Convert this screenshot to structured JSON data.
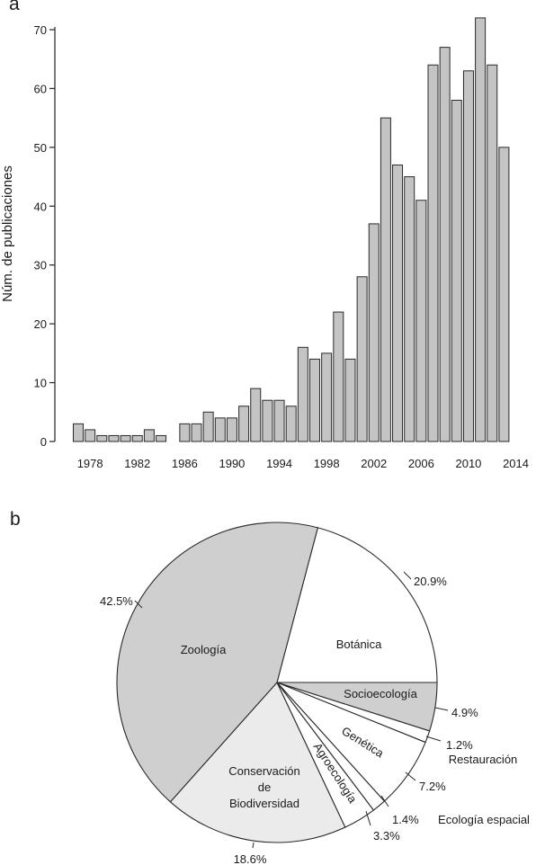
{
  "panels": {
    "a": "a",
    "b": "b"
  },
  "chart_data": [
    {
      "type": "bar",
      "ylabel": "Núm. de publicaciones",
      "xlabel": "",
      "ylim": [
        0,
        70
      ],
      "yticks": [
        0,
        10,
        20,
        30,
        40,
        50,
        60,
        70
      ],
      "xticks": [
        "1978",
        "1982",
        "1986",
        "1990",
        "1994",
        "1998",
        "2002",
        "2006",
        "2010",
        "2014"
      ],
      "categories": [
        1977,
        1978,
        1979,
        1980,
        1981,
        1982,
        1983,
        1984,
        1985,
        1986,
        1987,
        1988,
        1989,
        1990,
        1991,
        1992,
        1993,
        1994,
        1995,
        1996,
        1997,
        1998,
        1999,
        2000,
        2001,
        2002,
        2003,
        2004,
        2005,
        2006,
        2007,
        2008,
        2009,
        2010,
        2011,
        2012,
        2013,
        2014
      ],
      "values": [
        3,
        2,
        1,
        1,
        1,
        1,
        2,
        1,
        0,
        3,
        3,
        5,
        4,
        4,
        6,
        9,
        7,
        7,
        6,
        16,
        14,
        15,
        22,
        14,
        28,
        37,
        55,
        47,
        45,
        41,
        64,
        67,
        58,
        63,
        72,
        64,
        50,
        0
      ],
      "bar_color": "#c4c4c4"
    },
    {
      "type": "pie",
      "slices": [
        {
          "label": "Botánica",
          "pct_label": "20.9%",
          "value": 20.9,
          "color": "#ffffff"
        },
        {
          "label": "Socioecología",
          "pct_label": "4.9%",
          "value": 4.9,
          "color": "#cfcfcf"
        },
        {
          "label": "Restauración",
          "pct_label": "1.2%",
          "value": 1.2,
          "color": "#ffffff"
        },
        {
          "label": "Genética",
          "pct_label": "7.2%",
          "value": 7.2,
          "color": "#ffffff"
        },
        {
          "label": "Ecología espacial",
          "pct_label": "1.4%",
          "value": 1.4,
          "color": "#ffffff"
        },
        {
          "label": "Agroecología",
          "pct_label": "3.3%",
          "value": 3.3,
          "color": "#ffffff"
        },
        {
          "label_lines": [
            "Conservación",
            "de",
            "Biodiversidad"
          ],
          "pct_label": "18.6%",
          "value": 18.6,
          "color": "#ebebeb"
        },
        {
          "label": "Zoología",
          "pct_label": "42.5%",
          "value": 42.5,
          "color": "#cfcfcf"
        }
      ]
    }
  ]
}
